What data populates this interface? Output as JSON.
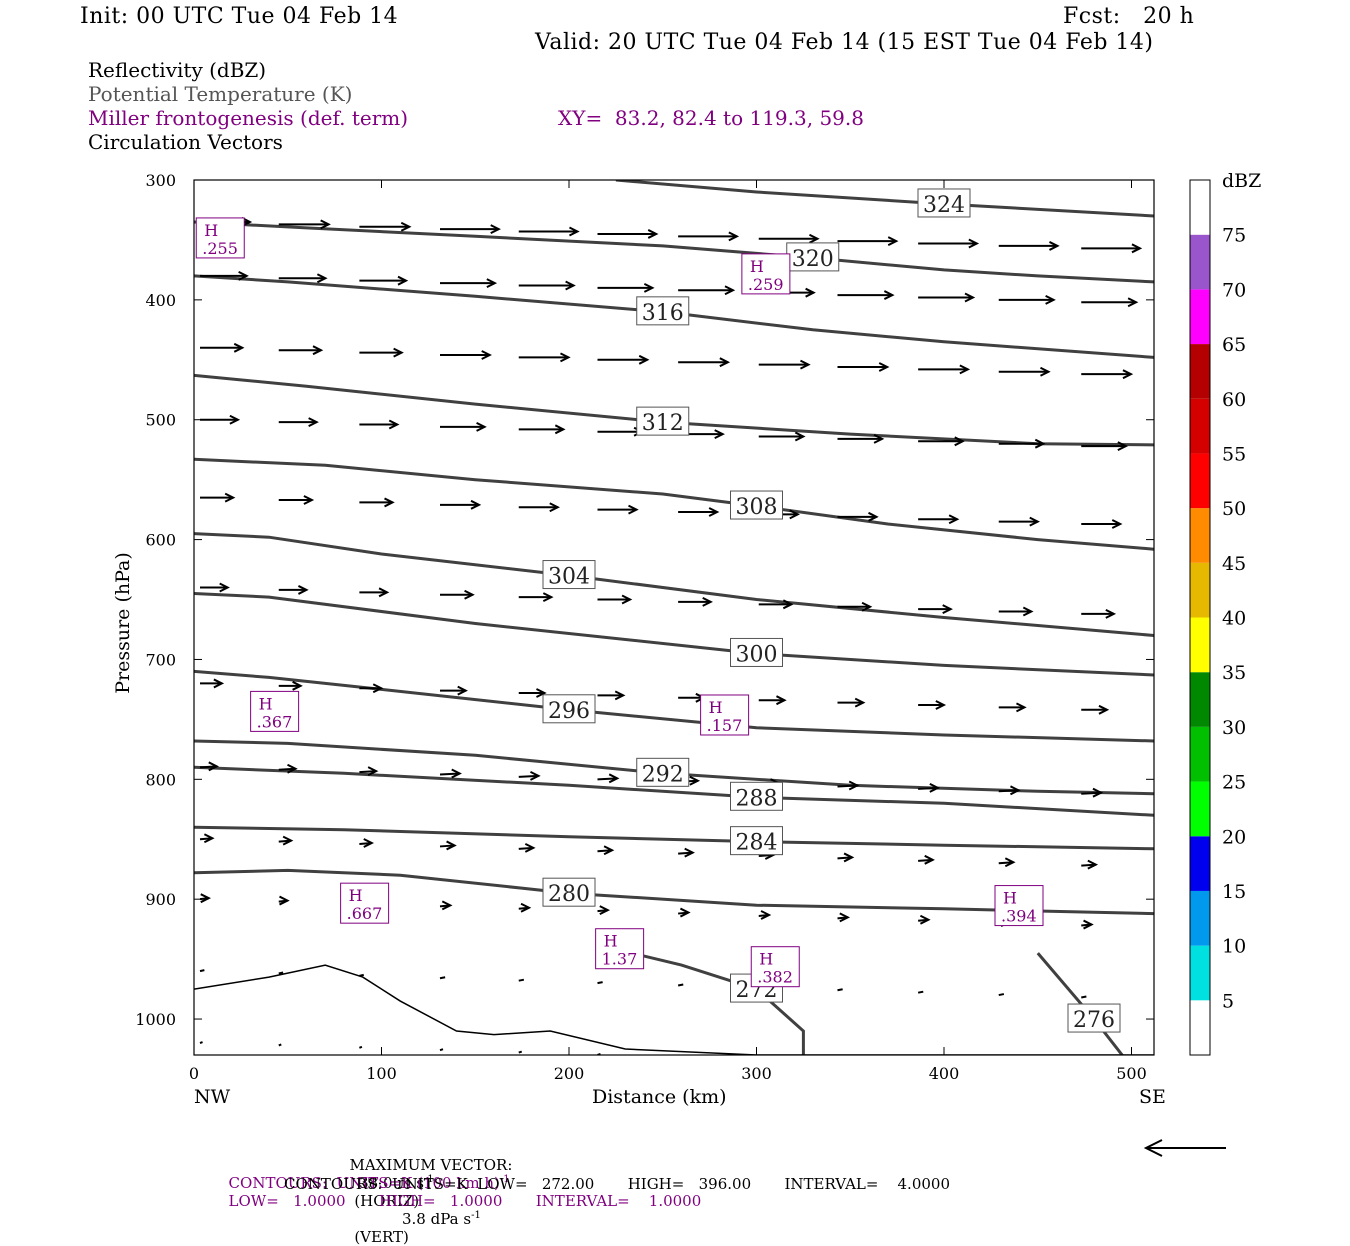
{
  "header": {
    "init": "Init: 00 UTC Tue 04 Feb 14",
    "fcst": "Fcst:   20 h",
    "valid": "Valid: 20 UTC Tue 04 Feb 14 (15 EST Tue 04 Feb 14)"
  },
  "legend": {
    "reflectivity": "Reflectivity (dBZ)",
    "theta": "Potential Temperature (K)",
    "miller": "Miller frontogenesis (def. term)",
    "xy": "XY=  83.2, 82.4 to 119.3, 59.8",
    "circulation": "Circulation Vectors"
  },
  "colors": {
    "theta": "#404040",
    "miller": "#800080",
    "vector": "#000000"
  },
  "chart_data": {
    "type": "cross-section",
    "xlabel": "Distance (km)",
    "ylabel": "Pressure (hPa)",
    "x_ticks": [
      "0",
      "100",
      "200",
      "300",
      "400",
      "500"
    ],
    "x_end_labels": [
      "NW",
      "SE"
    ],
    "y_ticks": [
      "300",
      "400",
      "500",
      "600",
      "700",
      "800",
      "900",
      "1000"
    ],
    "xlim": [
      0,
      512
    ],
    "ylim": [
      300,
      1030
    ],
    "y_axis": "pressure decreasing upward",
    "colorbar": {
      "title": "dBZ",
      "labels": [
        "5",
        "10",
        "15",
        "20",
        "25",
        "30",
        "35",
        "40",
        "45",
        "50",
        "55",
        "60",
        "65",
        "70",
        "75"
      ],
      "colors": [
        "#ffffff",
        "#00e0e0",
        "#0099ee",
        "#0000ee",
        "#00ff00",
        "#00c000",
        "#008800",
        "#ffff00",
        "#e6b800",
        "#ff8c00",
        "#ff0000",
        "#d40000",
        "#b40000",
        "#ff00ff",
        "#9955cc",
        "#ffffff"
      ]
    },
    "theta_contours": [
      {
        "label": "324",
        "points": [
          [
            225,
            300
          ],
          [
            300,
            310
          ],
          [
            400,
            320
          ],
          [
            512,
            330
          ]
        ]
      },
      {
        "label": "320",
        "points": [
          [
            0,
            335
          ],
          [
            60,
            340
          ],
          [
            150,
            347
          ],
          [
            250,
            355
          ],
          [
            330,
            365
          ],
          [
            400,
            375
          ],
          [
            450,
            380
          ],
          [
            512,
            385
          ]
        ]
      },
      {
        "label": "316",
        "points": [
          [
            0,
            380
          ],
          [
            50,
            385
          ],
          [
            150,
            397
          ],
          [
            250,
            410
          ],
          [
            330,
            425
          ],
          [
            400,
            435
          ],
          [
            512,
            448
          ]
        ]
      },
      {
        "label": "312",
        "points": [
          [
            0,
            463
          ],
          [
            60,
            472
          ],
          [
            150,
            487
          ],
          [
            250,
            502
          ],
          [
            350,
            512
          ],
          [
            450,
            520
          ],
          [
            512,
            521
          ]
        ]
      },
      {
        "label": "308",
        "points": [
          [
            0,
            533
          ],
          [
            70,
            538
          ],
          [
            150,
            550
          ],
          [
            250,
            562
          ],
          [
            300,
            572
          ],
          [
            370,
            587
          ],
          [
            450,
            600
          ],
          [
            512,
            608
          ]
        ]
      },
      {
        "label": "304",
        "points": [
          [
            0,
            595
          ],
          [
            40,
            598
          ],
          [
            100,
            612
          ],
          [
            200,
            630
          ],
          [
            300,
            650
          ],
          [
            400,
            665
          ],
          [
            512,
            680
          ]
        ]
      },
      {
        "label": "300",
        "points": [
          [
            0,
            645
          ],
          [
            40,
            648
          ],
          [
            150,
            670
          ],
          [
            300,
            695
          ],
          [
            400,
            705
          ],
          [
            512,
            713
          ]
        ]
      },
      {
        "label": "296",
        "points": [
          [
            0,
            710
          ],
          [
            40,
            715
          ],
          [
            100,
            725
          ],
          [
            200,
            742
          ],
          [
            300,
            757
          ],
          [
            400,
            763
          ],
          [
            512,
            768
          ]
        ]
      },
      {
        "label": "292",
        "points": [
          [
            0,
            768
          ],
          [
            50,
            770
          ],
          [
            150,
            780
          ],
          [
            250,
            795
          ],
          [
            350,
            805
          ],
          [
            450,
            810
          ],
          [
            512,
            812
          ]
        ]
      },
      {
        "label": "288",
        "points": [
          [
            0,
            790
          ],
          [
            80,
            795
          ],
          [
            200,
            805
          ],
          [
            300,
            815
          ],
          [
            400,
            820
          ],
          [
            512,
            830
          ]
        ]
      },
      {
        "label": "284",
        "points": [
          [
            0,
            840
          ],
          [
            80,
            842
          ],
          [
            200,
            848
          ],
          [
            300,
            852
          ],
          [
            400,
            855
          ],
          [
            512,
            858
          ]
        ]
      },
      {
        "label": "280",
        "points": [
          [
            0,
            878
          ],
          [
            50,
            876
          ],
          [
            110,
            880
          ],
          [
            200,
            895
          ],
          [
            300,
            905
          ],
          [
            400,
            908
          ],
          [
            512,
            912
          ]
        ]
      },
      {
        "label": "276",
        "points": [
          [
            450,
            945
          ],
          [
            480,
            1000
          ],
          [
            500,
            1040
          ]
        ]
      },
      {
        "label": "272",
        "points": [
          [
            215,
            938
          ],
          [
            260,
            955
          ],
          [
            300,
            975
          ],
          [
            325,
            1010
          ],
          [
            325,
            1030
          ]
        ]
      }
    ],
    "max_vector": {
      "horiz": "38.0 m s",
      "vert": "3.8 dPa s"
    },
    "contour_info": {
      "miller": {
        "units": "K (100 km h)",
        "low": "1.0000",
        "high": "1.0000",
        "interval": "1.0000"
      },
      "theta": {
        "units": "K",
        "low": "272.00",
        "high": "396.00",
        "interval": "4.0000"
      }
    },
    "miller_maxima": [
      {
        "label": "H",
        "value": ".255",
        "x": 14,
        "p": 350
      },
      {
        "label": "H",
        "value": ".259",
        "x": 305,
        "p": 380
      },
      {
        "label": "H",
        "value": ".367",
        "x": 43,
        "p": 745
      },
      {
        "label": "H",
        "value": ".157",
        "x": 283,
        "p": 748
      },
      {
        "label": "H",
        "value": ".667",
        "x": 91,
        "p": 905
      },
      {
        "label": "H",
        "value": "1.37",
        "x": 227,
        "p": 943
      },
      {
        "label": "H",
        "value": ".382",
        "x": 310,
        "p": 958
      },
      {
        "label": "H",
        "value": ".394",
        "x": 440,
        "p": 907
      }
    ]
  },
  "footer": {
    "max_vector_prefix": "MAXIMUM VECTOR:",
    "max_vector_horiz": "38.0 m s",
    "horiz_label": "(HORIZ)",
    "max_vector_vert": "3.8 dPa s",
    "vert_label": "(VERT)",
    "exp": "-1",
    "contours1_a": "CONTOURS:  UNITS=K (100 km h)",
    "contours1_b": "LOW=   1.0000       HIGH=   1.0000       INTERVAL=    1.0000",
    "contours2": "CONTOURS:  UNITS=K  LOW=   272.00       HIGH=   396.00       INTERVAL=    4.0000"
  }
}
